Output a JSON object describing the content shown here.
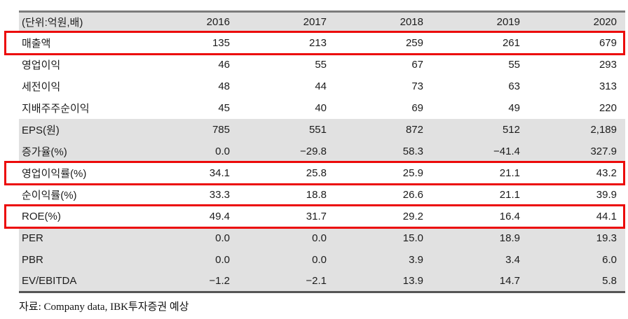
{
  "table": {
    "unit_header": "(단위:억원,배)",
    "years": [
      "2016",
      "2017",
      "2018",
      "2019",
      "2020"
    ],
    "rows": [
      {
        "label": "매출액",
        "values": [
          "135",
          "213",
          "259",
          "261",
          "679"
        ],
        "highlight": true,
        "shade": false
      },
      {
        "label": "영업이익",
        "values": [
          "46",
          "55",
          "67",
          "55",
          "293"
        ],
        "highlight": false,
        "shade": false
      },
      {
        "label": "세전이익",
        "values": [
          "48",
          "44",
          "73",
          "63",
          "313"
        ],
        "highlight": false,
        "shade": false
      },
      {
        "label": "지배주주순이익",
        "values": [
          "45",
          "40",
          "69",
          "49",
          "220"
        ],
        "highlight": false,
        "shade": false
      },
      {
        "label": "EPS(원)",
        "values": [
          "785",
          "551",
          "872",
          "512",
          "2,189"
        ],
        "highlight": false,
        "shade": true
      },
      {
        "label": "증가율(%)",
        "values": [
          "0.0",
          "−29.8",
          "58.3",
          "−41.4",
          "327.9"
        ],
        "highlight": false,
        "shade": true
      },
      {
        "label": "영업이익률(%)",
        "values": [
          "34.1",
          "25.8",
          "25.9",
          "21.1",
          "43.2"
        ],
        "highlight": true,
        "shade": false
      },
      {
        "label": "순이익률(%)",
        "values": [
          "33.3",
          "18.8",
          "26.6",
          "21.1",
          "39.9"
        ],
        "highlight": false,
        "shade": false
      },
      {
        "label": "ROE(%)",
        "values": [
          "49.4",
          "31.7",
          "29.2",
          "16.4",
          "44.1"
        ],
        "highlight": true,
        "shade": false
      },
      {
        "label": "PER",
        "values": [
          "0.0",
          "0.0",
          "15.0",
          "18.9",
          "19.3"
        ],
        "highlight": false,
        "shade": true
      },
      {
        "label": "PBR",
        "values": [
          "0.0",
          "0.0",
          "3.9",
          "3.4",
          "6.0"
        ],
        "highlight": false,
        "shade": true
      },
      {
        "label": "EV/EBITDA",
        "values": [
          "−1.2",
          "−2.1",
          "13.9",
          "14.7",
          "5.8"
        ],
        "highlight": false,
        "shade": true
      }
    ],
    "source": "자료: Company data, IBK투자증권 예상"
  },
  "colors": {
    "highlight_border": "#ec0a0a",
    "shade_bg": "#e1e1e1",
    "header_bg": "#e1e1e1",
    "top_rule": "#7c7c7c",
    "bottom_rule": "#555555",
    "text": "#1c1c1c"
  }
}
